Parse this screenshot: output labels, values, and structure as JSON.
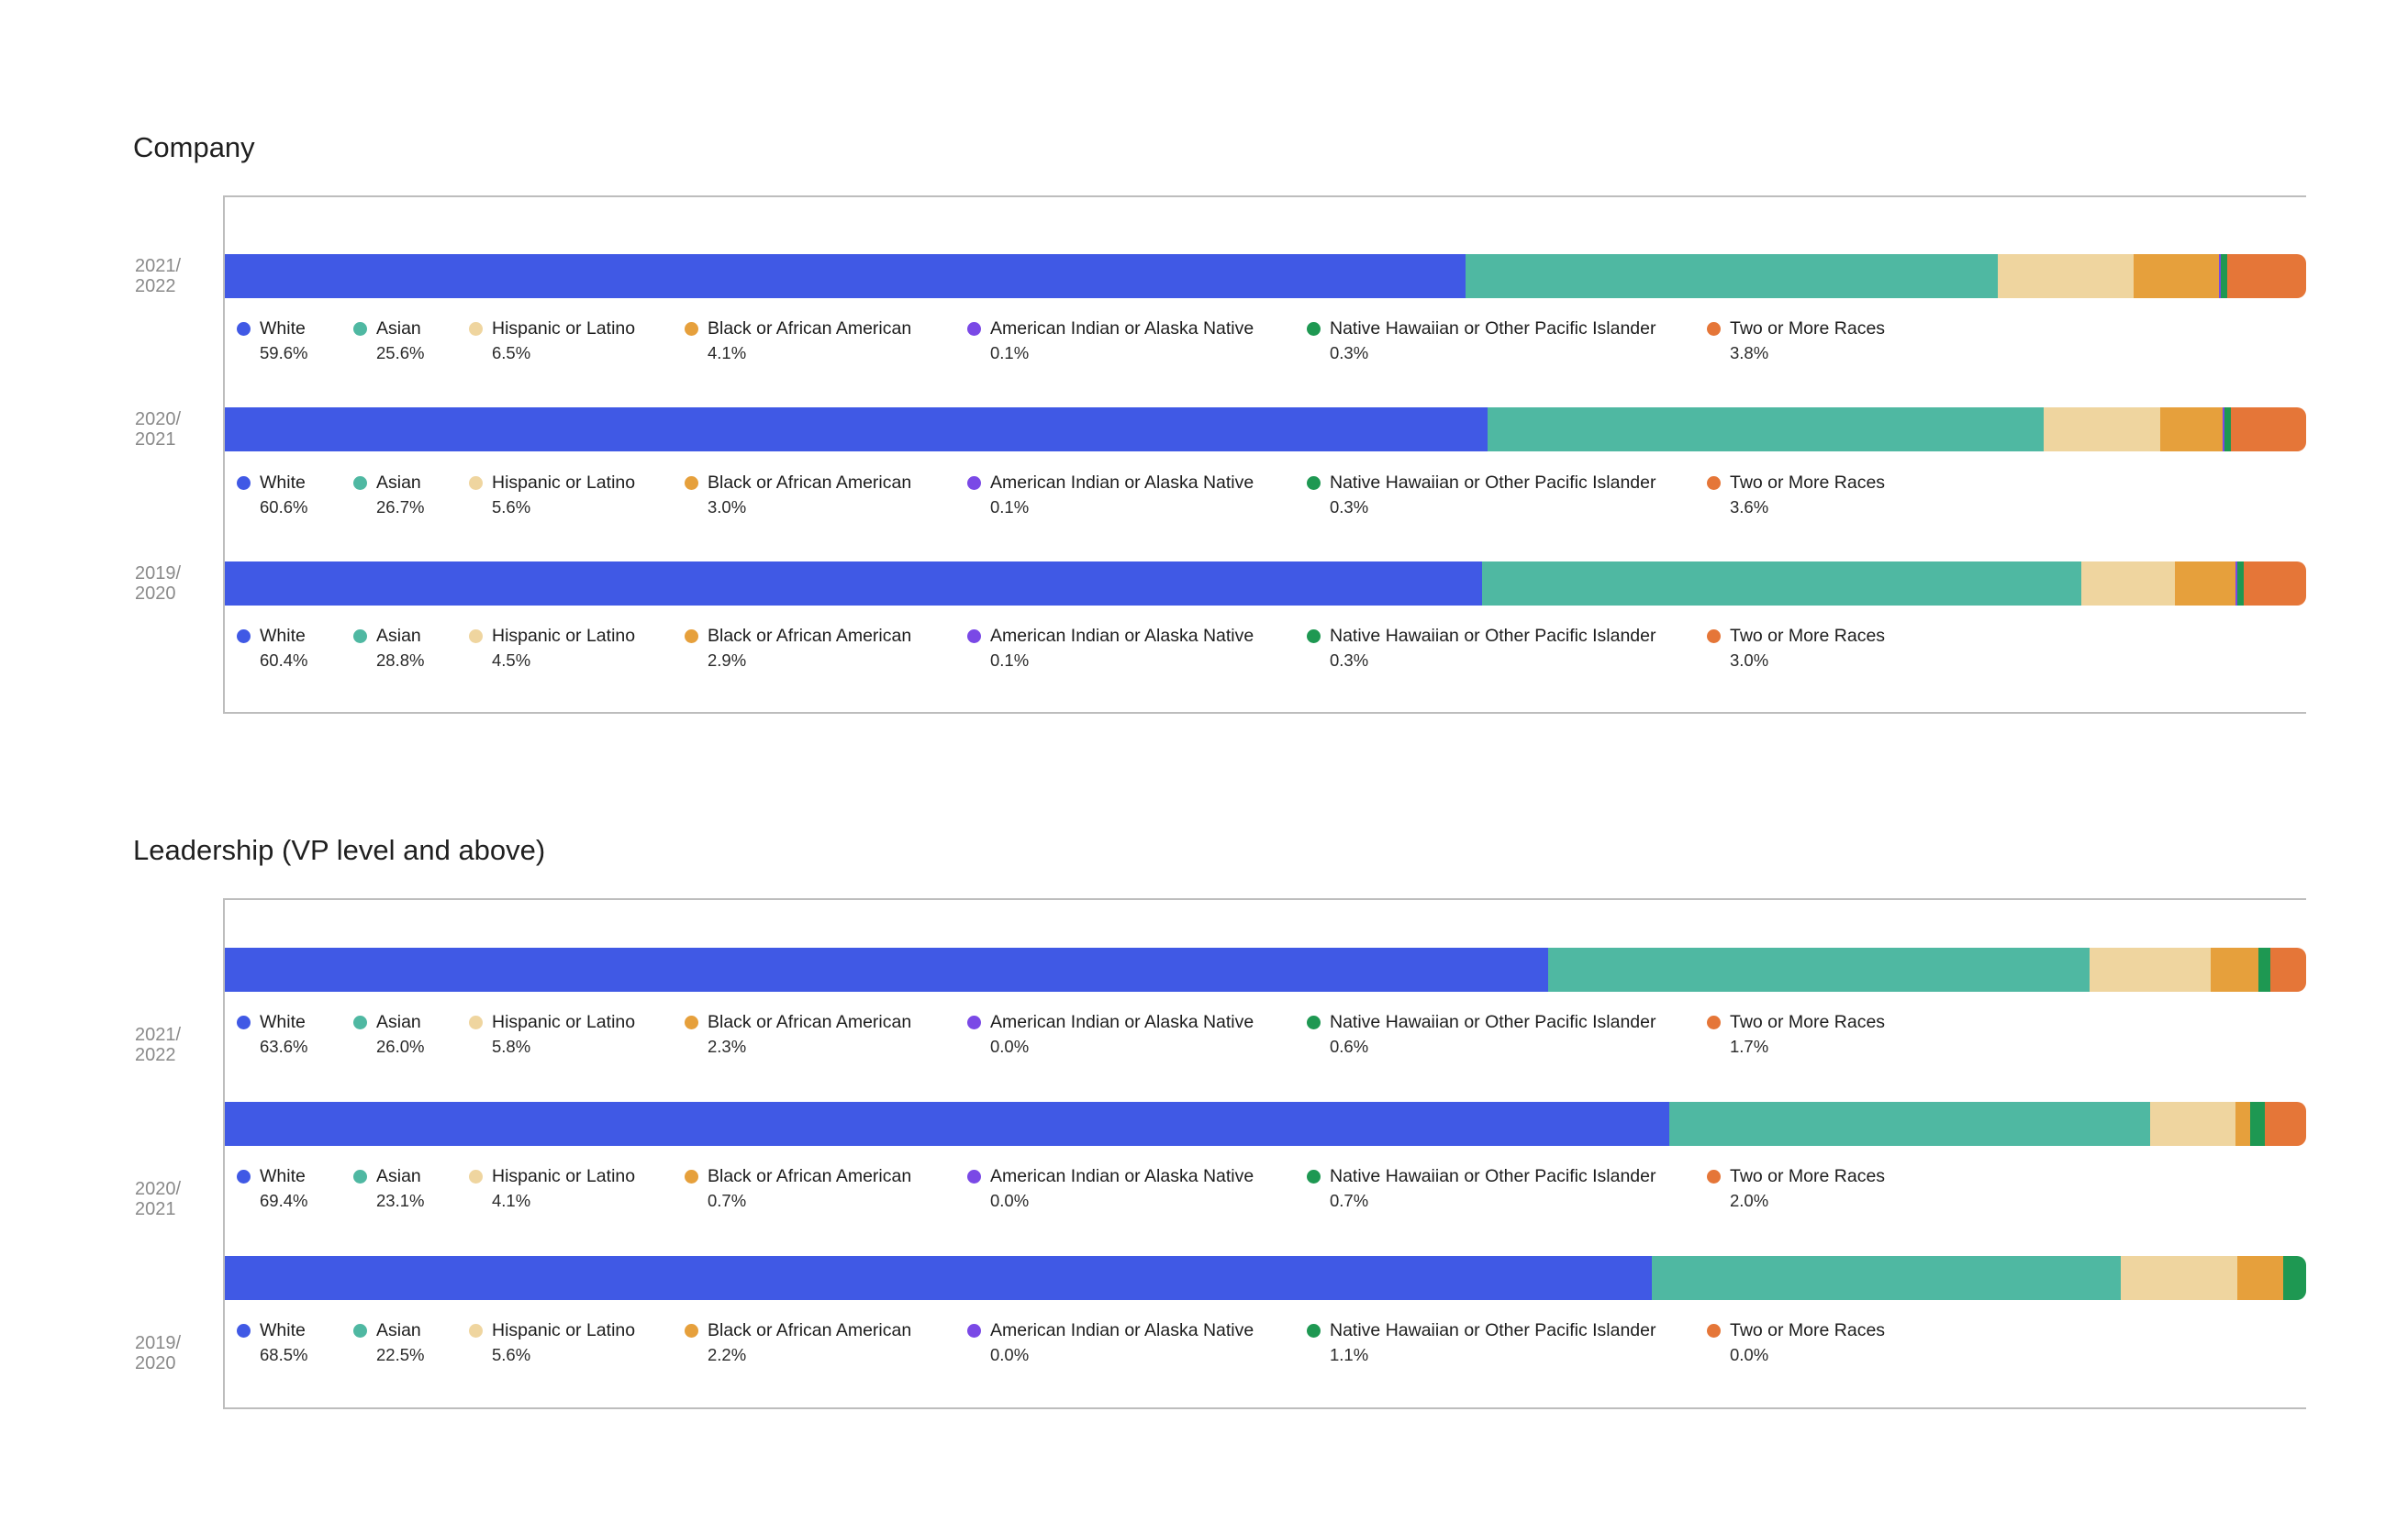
{
  "chart_data": [
    {
      "type": "bar",
      "orientation": "horizontal-stacked",
      "title": "Company",
      "categories_order": [
        "White",
        "Asian",
        "Hispanic or Latino",
        "Black or African American",
        "American Indian or Alaska Native",
        "Native Hawaiian or Other Pacific Islander",
        "Two or More Races"
      ],
      "colors": [
        "#4059e5",
        "#4fb8a2",
        "#efd59f",
        "#e6a03c",
        "#7a49e6",
        "#1e9852",
        "#e57638"
      ],
      "rows": [
        {
          "period": "2021/\n2022",
          "values": [
            59.6,
            25.6,
            6.5,
            4.1,
            0.1,
            0.3,
            3.8
          ],
          "labels": [
            "59.6%",
            "25.6%",
            "6.5%",
            "4.1%",
            "0.1%",
            "0.3%",
            "3.8%"
          ]
        },
        {
          "period": "2020/\n2021",
          "values": [
            60.6,
            26.7,
            5.6,
            3.0,
            0.1,
            0.3,
            3.6
          ],
          "labels": [
            "60.6%",
            "26.7%",
            "5.6%",
            "3.0%",
            "0.1%",
            "0.3%",
            "3.6%"
          ]
        },
        {
          "period": "2019/\n2020",
          "values": [
            60.4,
            28.8,
            4.5,
            2.9,
            0.1,
            0.3,
            3.0
          ],
          "labels": [
            "60.4%",
            "28.8%",
            "4.5%",
            "2.9%",
            "0.1%",
            "0.3%",
            "3.0%"
          ]
        }
      ]
    },
    {
      "type": "bar",
      "orientation": "horizontal-stacked",
      "title": "Leadership (VP level and above)",
      "categories_order": [
        "White",
        "Asian",
        "Hispanic or Latino",
        "Black or African American",
        "American Indian or Alaska Native",
        "Native Hawaiian or Other Pacific Islander",
        "Two or More Races"
      ],
      "colors": [
        "#4059e5",
        "#4fb8a2",
        "#efd59f",
        "#e6a03c",
        "#7a49e6",
        "#1e9852",
        "#e57638"
      ],
      "rows": [
        {
          "period": "2021/\n2022",
          "values": [
            63.6,
            26.0,
            5.8,
            2.3,
            0.0,
            0.6,
            1.7
          ],
          "labels": [
            "63.6%",
            "26.0%",
            "5.8%",
            "2.3%",
            "0.0%",
            "0.6%",
            "1.7%"
          ]
        },
        {
          "period": "2020/\n2021",
          "values": [
            69.4,
            23.1,
            4.1,
            0.7,
            0.0,
            0.7,
            2.0
          ],
          "labels": [
            "69.4%",
            "23.1%",
            "4.1%",
            "0.7%",
            "0.0%",
            "0.7%",
            "2.0%"
          ]
        },
        {
          "period": "2019/\n2020",
          "values": [
            68.5,
            22.5,
            5.6,
            2.2,
            0.0,
            1.1,
            0.0
          ],
          "labels": [
            "68.5%",
            "22.5%",
            "5.6%",
            "2.2%",
            "0.0%",
            "1.1%",
            "0.0%"
          ]
        }
      ]
    }
  ]
}
